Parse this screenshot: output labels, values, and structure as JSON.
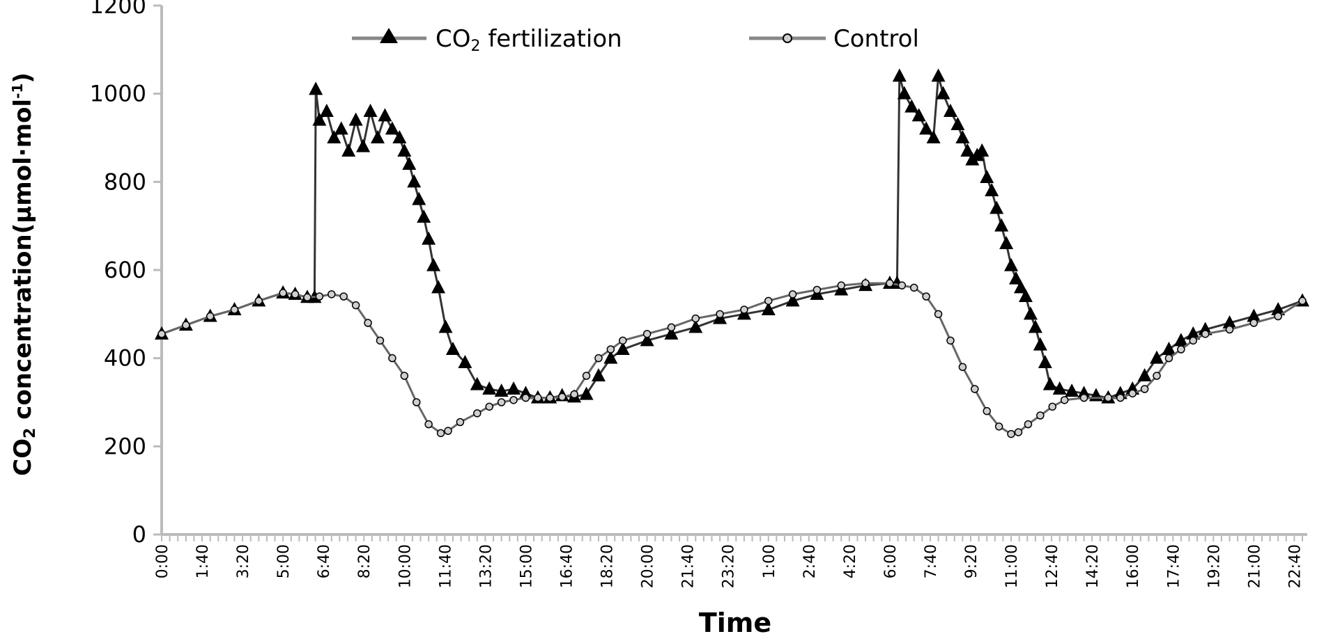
{
  "chart_data": {
    "type": "line",
    "title": "",
    "xlabel": "Time",
    "ylabel": "CO₂ concentration(μmol·mol⁻¹)",
    "ylabel_main": "CO",
    "ylabel_sub": "2",
    "ylabel_rest": " concentration(μmol·mol",
    "ylabel_sup": "-1",
    "ylabel_close": ")",
    "ylim": [
      0,
      1200
    ],
    "yticks": [
      0,
      200,
      400,
      600,
      800,
      1000,
      1200
    ],
    "ytick_labels": [
      "0",
      "200",
      "400",
      "600",
      "800",
      "1000",
      "1200"
    ],
    "x_unit": "hours from 0:00 on the first day",
    "xlim": [
      0,
      47.2
    ],
    "x_tick_hours": [
      0,
      1.667,
      3.333,
      5,
      6.667,
      8.333,
      10,
      11.667,
      13.333,
      15,
      16.667,
      18.333,
      20,
      21.667,
      23.333,
      25,
      26.667,
      28.333,
      30,
      31.667,
      33.333,
      35,
      36.667,
      38.333,
      40,
      41.667,
      43.333,
      45,
      46.667
    ],
    "x_tick_labels": [
      "0:00",
      "1:40",
      "3:20",
      "5:00",
      "6:40",
      "8:20",
      "10:00",
      "11:40",
      "13:20",
      "15:00",
      "16:40",
      "18:20",
      "20:00",
      "21:40",
      "23:20",
      "1:00",
      "2:40",
      "4:20",
      "6:00",
      "7:40",
      "9:20",
      "11:00",
      "12:40",
      "14:20",
      "16:00",
      "17:40",
      "19:20",
      "21:00",
      "22:40"
    ],
    "grid": false,
    "legend_position": "top-center",
    "series": [
      {
        "name": "CO₂ fertilization",
        "name_main": "CO",
        "name_sub": "2",
        "name_rest": " fertilization",
        "marker": "triangle",
        "color": "#000000",
        "x": [
          0,
          1,
          2,
          3,
          4,
          5,
          5.5,
          6.0,
          6.3,
          6.35,
          6.5,
          6.8,
          7.1,
          7.4,
          7.7,
          8.0,
          8.3,
          8.6,
          8.9,
          9.2,
          9.5,
          9.8,
          10.0,
          10.2,
          10.4,
          10.6,
          10.8,
          11.0,
          11.2,
          11.4,
          11.7,
          12.0,
          12.5,
          13.0,
          13.5,
          14.0,
          14.5,
          15.0,
          15.5,
          16.0,
          16.5,
          17.0,
          17.5,
          18.0,
          18.5,
          19.0,
          20.0,
          21.0,
          22.0,
          23.0,
          24.0,
          25.0,
          26.0,
          27.0,
          28.0,
          29.0,
          30.0,
          30.3,
          30.4,
          30.6,
          30.9,
          31.2,
          31.5,
          31.8,
          32.0,
          32.2,
          32.5,
          32.8,
          33.0,
          33.2,
          33.4,
          33.6,
          33.8,
          34.0,
          34.2,
          34.4,
          34.6,
          34.8,
          35.0,
          35.2,
          35.4,
          35.6,
          35.8,
          36.0,
          36.2,
          36.4,
          36.6,
          37.0,
          37.5,
          38.0,
          38.5,
          39.0,
          39.5,
          40.0,
          40.5,
          41.0,
          41.5,
          42.0,
          42.5,
          43.0,
          44.0,
          45.0,
          46.0,
          47.0
        ],
        "y": [
          455,
          475,
          495,
          510,
          530,
          548,
          545,
          538,
          538,
          1010,
          940,
          960,
          900,
          920,
          870,
          940,
          880,
          960,
          900,
          950,
          920,
          900,
          870,
          840,
          800,
          760,
          720,
          670,
          610,
          560,
          470,
          420,
          390,
          340,
          330,
          325,
          330,
          320,
          310,
          310,
          315,
          312,
          318,
          360,
          400,
          420,
          440,
          455,
          470,
          490,
          500,
          510,
          530,
          545,
          555,
          565,
          570,
          570,
          1040,
          1000,
          970,
          950,
          920,
          900,
          1040,
          1000,
          960,
          930,
          900,
          870,
          850,
          860,
          870,
          810,
          780,
          740,
          700,
          660,
          610,
          580,
          560,
          540,
          500,
          470,
          430,
          390,
          340,
          330,
          325,
          320,
          315,
          310,
          320,
          330,
          360,
          400,
          420,
          440,
          455,
          465,
          480,
          495,
          510,
          530
        ]
      },
      {
        "name": "Control",
        "marker": "circle",
        "color": "#000000",
        "x": [
          0,
          1,
          2,
          3,
          4,
          5,
          5.5,
          6.0,
          6.5,
          7.0,
          7.5,
          8.0,
          8.5,
          9.0,
          9.5,
          10.0,
          10.5,
          11.0,
          11.5,
          11.8,
          12.3,
          13.0,
          13.5,
          14.0,
          14.5,
          15.0,
          15.5,
          16.0,
          16.5,
          17.0,
          17.5,
          18.0,
          18.5,
          19.0,
          20.0,
          21.0,
          22.0,
          23.0,
          24.0,
          25.0,
          26.0,
          27.0,
          28.0,
          29.0,
          30.0,
          30.5,
          31.0,
          31.5,
          32.0,
          32.5,
          33.0,
          33.5,
          34.0,
          34.5,
          35.0,
          35.3,
          35.7,
          36.2,
          36.7,
          37.2,
          38.0,
          39.0,
          39.5,
          40.0,
          40.5,
          41.0,
          41.5,
          42.0,
          42.5,
          43.0,
          44.0,
          45.0,
          46.0,
          47.0
        ],
        "y": [
          455,
          475,
          495,
          510,
          530,
          548,
          545,
          538,
          540,
          545,
          540,
          520,
          480,
          440,
          400,
          360,
          300,
          250,
          230,
          235,
          255,
          275,
          290,
          300,
          305,
          310,
          310,
          310,
          312,
          318,
          360,
          400,
          420,
          440,
          455,
          470,
          490,
          500,
          510,
          530,
          545,
          555,
          565,
          570,
          570,
          565,
          560,
          540,
          500,
          440,
          380,
          330,
          280,
          245,
          228,
          232,
          250,
          270,
          290,
          305,
          310,
          310,
          310,
          320,
          330,
          360,
          400,
          420,
          440,
          455,
          465,
          480,
          495,
          530
        ]
      }
    ]
  }
}
